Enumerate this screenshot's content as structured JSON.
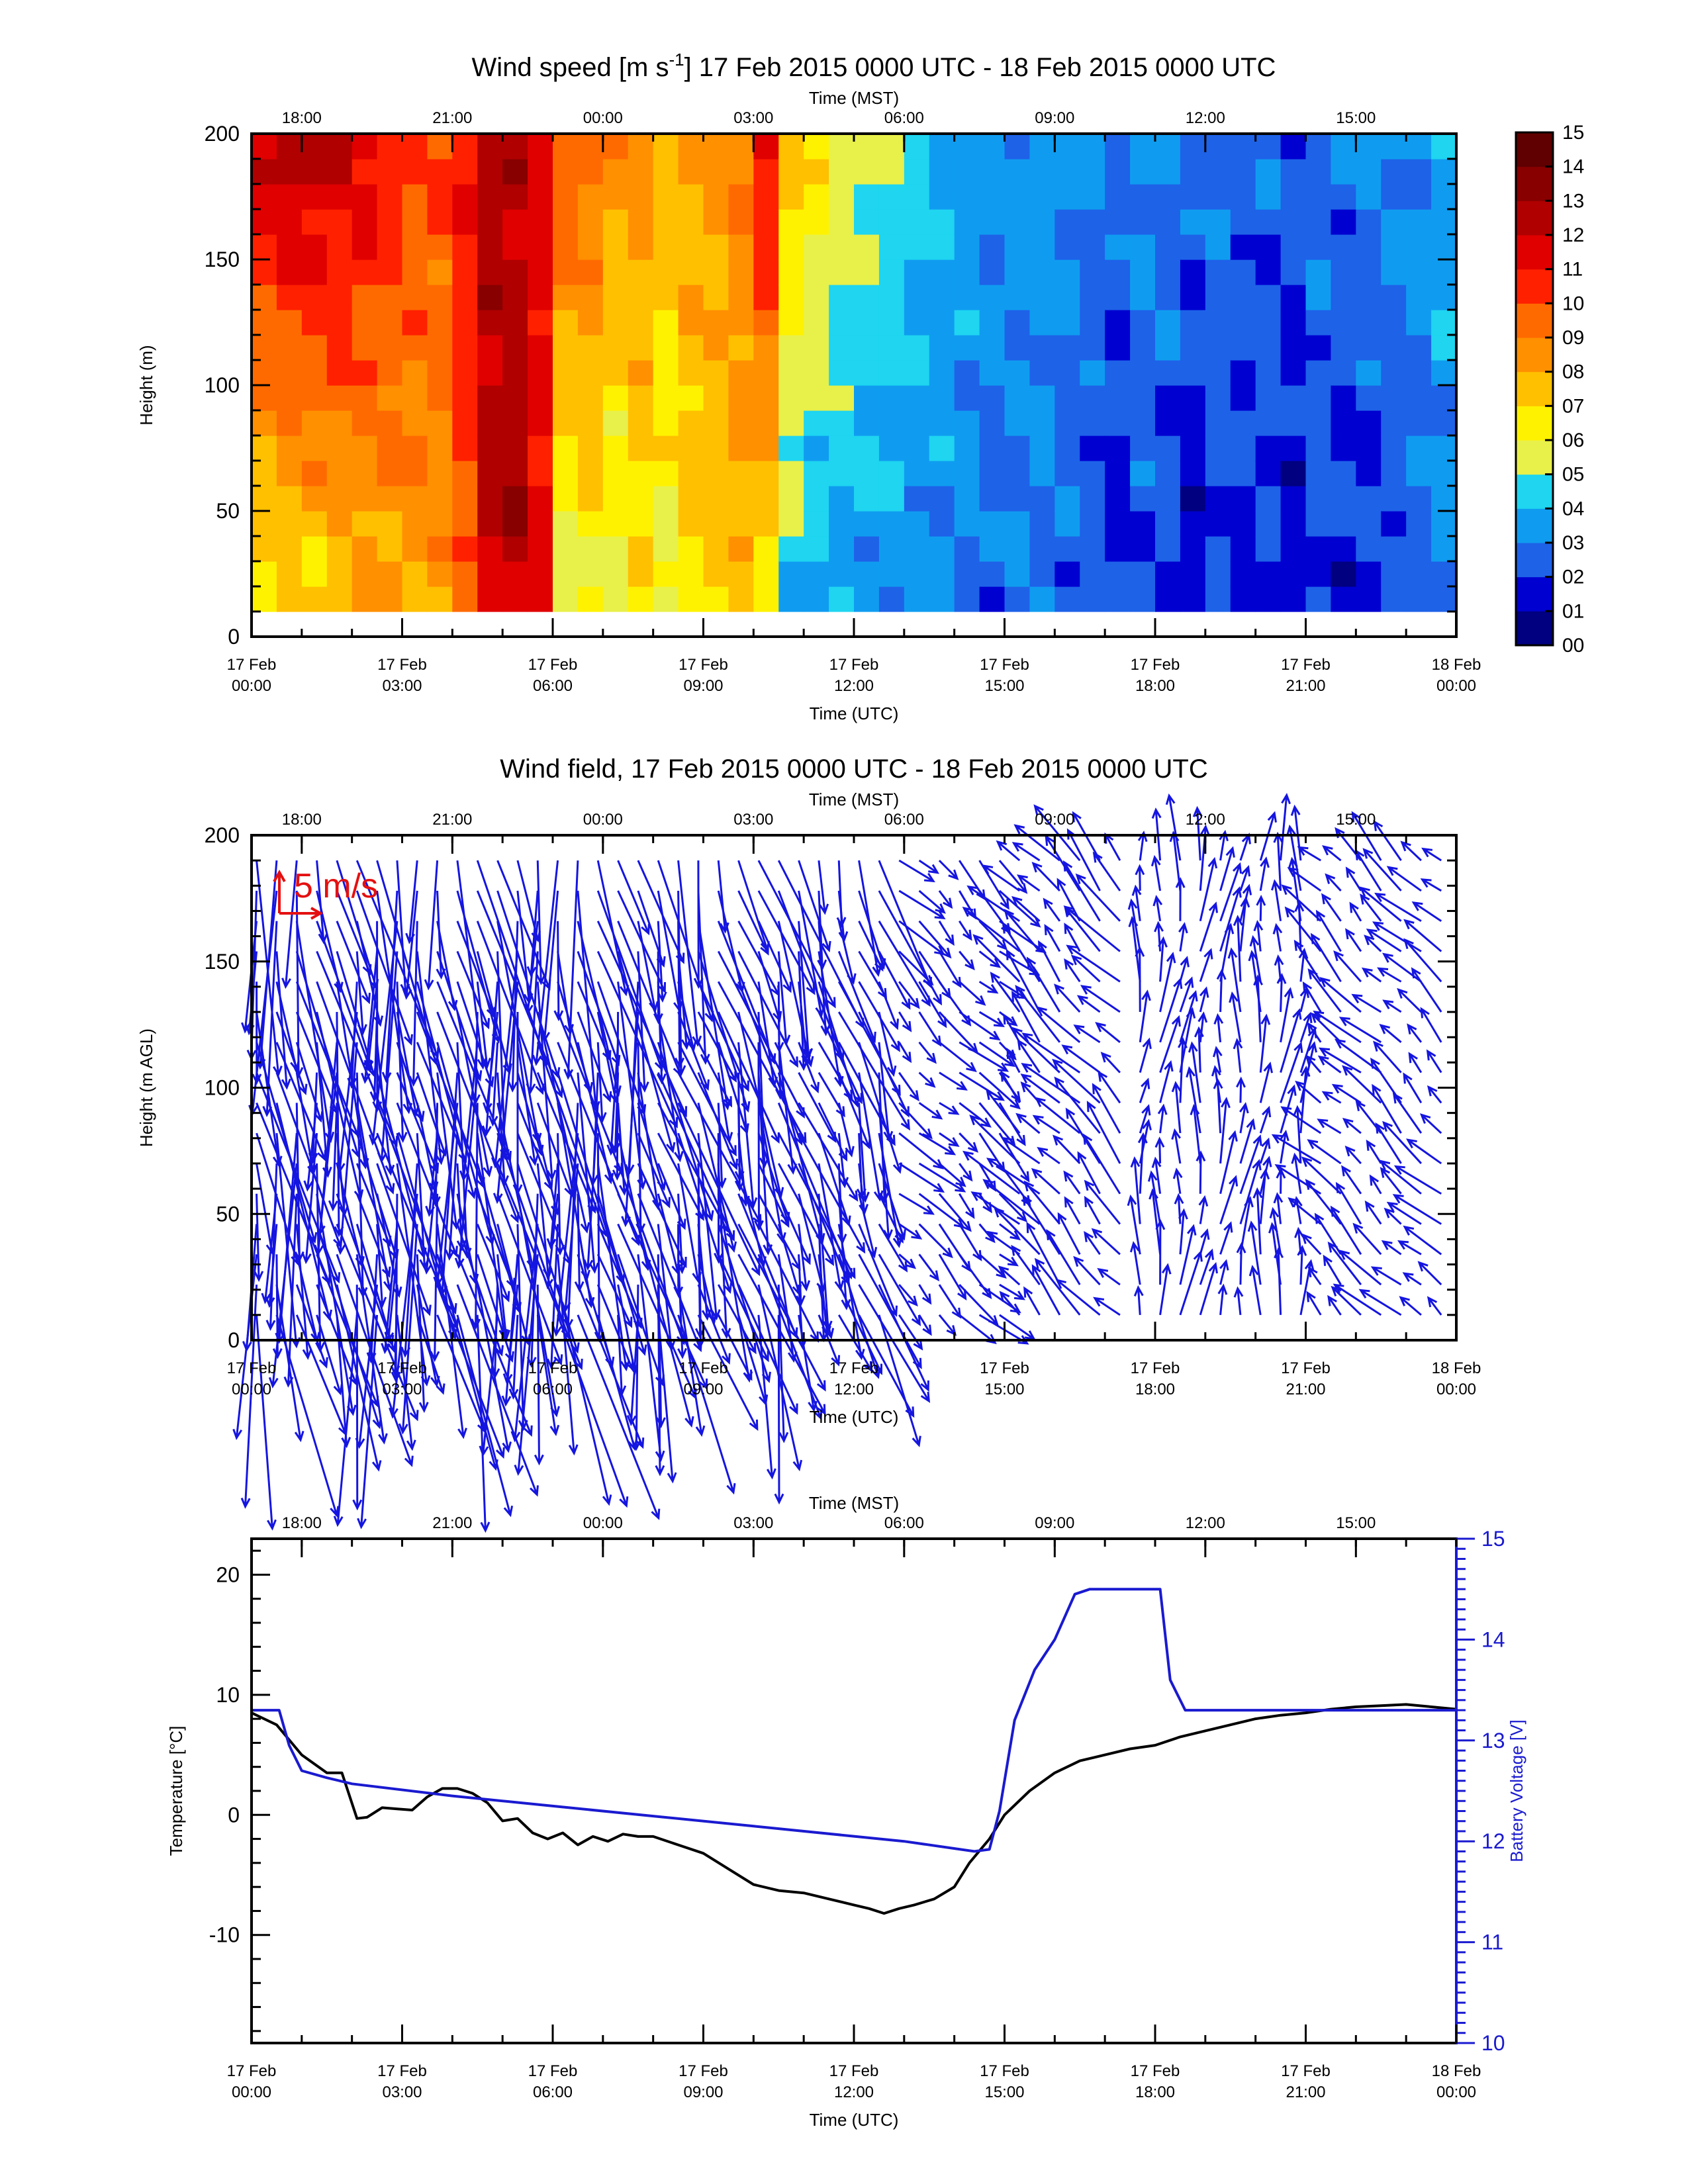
{
  "colors": {
    "wind_arrow": "#1515e0",
    "reference_arrow": "#e41010",
    "temperature_line": "#000000",
    "voltage_line": "#1a1ad0",
    "voltage_axis": "#1a1ad0"
  },
  "time_axis": {
    "utc_title": "Time (UTC)",
    "mst_title": "Time (MST)",
    "utc_ticks": [
      {
        "hour": 0,
        "day": "17 Feb",
        "time": "00:00"
      },
      {
        "hour": 3,
        "day": "17 Feb",
        "time": "03:00"
      },
      {
        "hour": 6,
        "day": "17 Feb",
        "time": "06:00"
      },
      {
        "hour": 9,
        "day": "17 Feb",
        "time": "09:00"
      },
      {
        "hour": 12,
        "day": "17 Feb",
        "time": "12:00"
      },
      {
        "hour": 15,
        "day": "17 Feb",
        "time": "15:00"
      },
      {
        "hour": 18,
        "day": "17 Feb",
        "time": "18:00"
      },
      {
        "hour": 21,
        "day": "17 Feb",
        "time": "21:00"
      },
      {
        "hour": 24,
        "day": "18 Feb",
        "time": "00:00"
      }
    ],
    "mst_ticks": [
      {
        "hour": 1,
        "label": "18:00"
      },
      {
        "hour": 4,
        "label": "21:00"
      },
      {
        "hour": 7,
        "label": "00:00"
      },
      {
        "hour": 10,
        "label": "03:00"
      },
      {
        "hour": 13,
        "label": "06:00"
      },
      {
        "hour": 16,
        "label": "09:00"
      },
      {
        "hour": 19,
        "label": "12:00"
      },
      {
        "hour": 22,
        "label": "15:00"
      }
    ]
  },
  "chart_data": [
    {
      "type": "heatmap",
      "title_main": "Wind speed [m s",
      "title_sup": "-1",
      "title_rest": "] 17 Feb 2015 0000 UTC - 18 Feb 2015 0000 UTC",
      "xlabel": "Time (UTC)",
      "x2label": "Time (MST)",
      "ylabel": "Height (m)",
      "xlim": [
        0,
        24
      ],
      "ylim": [
        0,
        200
      ],
      "yticks": [
        "0",
        "50",
        "100",
        "150",
        "200"
      ],
      "colorbar": {
        "levels": [
          "00",
          "01",
          "02",
          "03",
          "04",
          "05",
          "06",
          "07",
          "08",
          "09",
          "10",
          "11",
          "12",
          "13",
          "14",
          "15"
        ],
        "colors": [
          "#000080",
          "#0000d0",
          "#1e62e8",
          "#0f9cf0",
          "#1fd5f0",
          "#e8f04a",
          "#fff200",
          "#ffc000",
          "#ff9000",
          "#ff6a00",
          "#ff2000",
          "#e00000",
          "#b00000",
          "#880000",
          "#600000",
          "#380000"
        ]
      },
      "profiles": [
        {
          "hour_start": 0.0,
          "hour_end": 0.5,
          "speed_low": 6.3,
          "speed_high": 12.0
        },
        {
          "hour_start": 0.5,
          "hour_end": 1.0,
          "speed_low": 6.6,
          "speed_high": 12.8
        },
        {
          "hour_start": 1.0,
          "hour_end": 1.5,
          "speed_low": 6.8,
          "speed_high": 12.5
        },
        {
          "hour_start": 1.5,
          "hour_end": 2.0,
          "speed_low": 7.2,
          "speed_high": 12.0
        },
        {
          "hour_start": 2.0,
          "hour_end": 2.5,
          "speed_low": 7.5,
          "speed_high": 11.5
        },
        {
          "hour_start": 2.5,
          "hour_end": 3.0,
          "speed_low": 7.8,
          "speed_high": 11.0
        },
        {
          "hour_start": 3.0,
          "hour_end": 3.5,
          "speed_low": 7.9,
          "speed_high": 10.5
        },
        {
          "hour_start": 3.5,
          "hour_end": 4.0,
          "speed_low": 8.2,
          "speed_high": 10.2
        },
        {
          "hour_start": 4.0,
          "hour_end": 4.5,
          "speed_low": 9.5,
          "speed_high": 11.0
        },
        {
          "hour_start": 4.5,
          "hour_end": 5.0,
          "speed_low": 12.0,
          "speed_high": 12.8
        },
        {
          "hour_start": 5.0,
          "hour_end": 5.5,
          "speed_low": 12.5,
          "speed_high": 12.5
        },
        {
          "hour_start": 5.5,
          "hour_end": 6.0,
          "speed_low": 11.0,
          "speed_high": 11.5
        },
        {
          "hour_start": 6.0,
          "hour_end": 6.5,
          "speed_low": 5.0,
          "speed_high": 10.0
        },
        {
          "hour_start": 6.5,
          "hour_end": 7.0,
          "speed_low": 6.0,
          "speed_high": 9.5
        },
        {
          "hour_start": 7.0,
          "hour_end": 7.5,
          "speed_low": 5.5,
          "speed_high": 8.5
        },
        {
          "hour_start": 7.5,
          "hour_end": 8.0,
          "speed_low": 6.5,
          "speed_high": 8.5
        },
        {
          "hour_start": 8.0,
          "hour_end": 8.5,
          "speed_low": 5.5,
          "speed_high": 8.0
        },
        {
          "hour_start": 8.5,
          "hour_end": 9.0,
          "speed_low": 6.8,
          "speed_high": 8.3
        },
        {
          "hour_start": 9.0,
          "hour_end": 9.5,
          "speed_low": 7.0,
          "speed_high": 8.5
        },
        {
          "hour_start": 9.5,
          "hour_end": 10.0,
          "speed_low": 7.5,
          "speed_high": 9.0
        },
        {
          "hour_start": 10.0,
          "hour_end": 10.5,
          "speed_low": 6.5,
          "speed_high": 11.5
        },
        {
          "hour_start": 10.5,
          "hour_end": 11.0,
          "speed_low": 4.0,
          "speed_high": 7.5
        },
        {
          "hour_start": 11.0,
          "hour_end": 11.5,
          "speed_low": 3.5,
          "speed_high": 6.8
        },
        {
          "hour_start": 11.5,
          "hour_end": 12.0,
          "speed_low": 3.5,
          "speed_high": 6.0
        },
        {
          "hour_start": 12.0,
          "hour_end": 12.5,
          "speed_low": 3.3,
          "speed_high": 5.5
        },
        {
          "hour_start": 12.5,
          "hour_end": 13.0,
          "speed_low": 3.2,
          "speed_high": 5.0
        },
        {
          "hour_start": 13.0,
          "hour_end": 13.5,
          "speed_low": 3.0,
          "speed_high": 4.5
        },
        {
          "hour_start": 13.5,
          "hour_end": 14.0,
          "speed_low": 3.0,
          "speed_high": 4.0
        },
        {
          "hour_start": 14.0,
          "hour_end": 14.5,
          "speed_low": 2.8,
          "speed_high": 3.8
        },
        {
          "hour_start": 14.5,
          "hour_end": 15.0,
          "speed_low": 2.5,
          "speed_high": 3.5
        },
        {
          "hour_start": 15.0,
          "hour_end": 15.5,
          "speed_low": 2.8,
          "speed_high": 3.5
        },
        {
          "hour_start": 15.5,
          "hour_end": 16.0,
          "speed_low": 2.8,
          "speed_high": 3.5
        },
        {
          "hour_start": 16.0,
          "hour_end": 16.5,
          "speed_low": 2.5,
          "speed_high": 3.3
        },
        {
          "hour_start": 16.5,
          "hour_end": 17.0,
          "speed_low": 2.2,
          "speed_high": 3.0
        },
        {
          "hour_start": 17.0,
          "hour_end": 17.5,
          "speed_low": 1.5,
          "speed_high": 2.8
        },
        {
          "hour_start": 17.5,
          "hour_end": 18.0,
          "speed_low": 2.0,
          "speed_high": 3.5
        },
        {
          "hour_start": 18.0,
          "hour_end": 18.5,
          "speed_low": 1.8,
          "speed_high": 3.2
        },
        {
          "hour_start": 18.5,
          "hour_end": 19.0,
          "speed_low": 1.0,
          "speed_high": 2.8
        },
        {
          "hour_start": 19.0,
          "hour_end": 19.5,
          "speed_low": 2.0,
          "speed_high": 3.0
        },
        {
          "hour_start": 19.5,
          "hour_end": 20.0,
          "speed_low": 1.5,
          "speed_high": 2.5
        },
        {
          "hour_start": 20.0,
          "hour_end": 20.5,
          "speed_low": 1.8,
          "speed_high": 2.8
        },
        {
          "hour_start": 20.5,
          "hour_end": 21.0,
          "speed_low": 1.2,
          "speed_high": 2.5
        },
        {
          "hour_start": 21.0,
          "hour_end": 21.5,
          "speed_low": 2.0,
          "speed_high": 3.0
        },
        {
          "hour_start": 21.5,
          "hour_end": 22.0,
          "speed_low": 1.5,
          "speed_high": 2.8
        },
        {
          "hour_start": 22.0,
          "hour_end": 22.5,
          "speed_low": 1.8,
          "speed_high": 3.0
        },
        {
          "hour_start": 22.5,
          "hour_end": 23.0,
          "speed_low": 2.0,
          "speed_high": 3.2
        },
        {
          "hour_start": 23.0,
          "hour_end": 23.5,
          "speed_low": 2.5,
          "speed_high": 3.5
        },
        {
          "hour_start": 23.5,
          "hour_end": 24.0,
          "speed_low": 2.8,
          "speed_high": 4.0
        }
      ]
    },
    {
      "type": "vector",
      "title": "Wind field, 17 Feb 2015 0000 UTC - 18 Feb 2015 0000 UTC",
      "xlabel": "Time (UTC)",
      "x2label": "Time (MST)",
      "ylabel": "Height (m AGL)",
      "xlim": [
        0,
        24
      ],
      "ylim": [
        0,
        200
      ],
      "yticks": [
        "0",
        "50",
        "100",
        "150",
        "200"
      ],
      "reference_label": "5 m/s",
      "reference_speed": 5,
      "direction_segments": [
        {
          "hour_start": 0,
          "hour_end": 6.6,
          "u": 1.2,
          "v": -8.5
        },
        {
          "hour_start": 6.6,
          "hour_end": 8.0,
          "u": 1.5,
          "v": -8.0
        },
        {
          "hour_start": 8.0,
          "hour_end": 10.8,
          "u": 1.8,
          "v": -7.0
        },
        {
          "hour_start": 10.8,
          "hour_end": 12.8,
          "u": 1.5,
          "v": -5.0
        },
        {
          "hour_start": 12.8,
          "hour_end": 15.0,
          "u": 1.5,
          "v": -1.5
        },
        {
          "hour_start": 15.0,
          "hour_end": 17.5,
          "u": -1.8,
          "v": 2.0
        },
        {
          "hour_start": 17.5,
          "hour_end": 21.0,
          "u": 0.2,
          "v": 2.5
        },
        {
          "hour_start": 21.0,
          "hour_end": 24.0,
          "u": -1.5,
          "v": 1.5
        }
      ]
    },
    {
      "type": "line",
      "xlabel": "Time (UTC)",
      "x2label": "Time (MST)",
      "ylabel": "Temperature [°C]",
      "y2label": "Battery Voltage [V]",
      "xlim": [
        0,
        24
      ],
      "ylim": [
        -19,
        23
      ],
      "y2lim": [
        10,
        15
      ],
      "yticks": [
        "-10",
        "0",
        "10",
        "20"
      ],
      "y2ticks": [
        "10",
        "11",
        "12",
        "13",
        "14",
        "15"
      ],
      "series": [
        {
          "axis": "left",
          "x": [
            0,
            0.5,
            1.0,
            1.5,
            1.8,
            2.1,
            2.3,
            2.6,
            2.9,
            3.2,
            3.5,
            3.8,
            4.1,
            4.4,
            4.7,
            5.0,
            5.3,
            5.6,
            5.9,
            6.2,
            6.5,
            6.8,
            7.1,
            7.4,
            7.7,
            8.0,
            8.5,
            9.0,
            9.5,
            10.0,
            10.5,
            11.0,
            11.5,
            12.0,
            12.3,
            12.6,
            12.9,
            13.2,
            13.6,
            14.0,
            14.3,
            14.7,
            15.0,
            15.5,
            16.0,
            16.5,
            17.0,
            17.5,
            18.0,
            18.5,
            19.0,
            19.5,
            20.0,
            20.5,
            21.0,
            21.5,
            22.0,
            22.5,
            23.0,
            23.5,
            24.0
          ],
          "y": [
            8.5,
            7.5,
            5.0,
            3.5,
            3.5,
            -0.3,
            -0.2,
            0.6,
            0.5,
            0.4,
            1.5,
            2.2,
            2.2,
            1.8,
            1.0,
            -0.5,
            -0.3,
            -1.5,
            -2.0,
            -1.5,
            -2.5,
            -1.8,
            -2.2,
            -1.6,
            -1.8,
            -1.8,
            -2.5,
            -3.2,
            -4.5,
            -5.8,
            -6.3,
            -6.5,
            -7.0,
            -7.5,
            -7.8,
            -8.2,
            -7.8,
            -7.5,
            -7.0,
            -6.0,
            -4.0,
            -2.0,
            0.0,
            2.0,
            3.5,
            4.5,
            5.0,
            5.5,
            5.8,
            6.5,
            7.0,
            7.5,
            8.0,
            8.3,
            8.5,
            8.8,
            9.0,
            9.1,
            9.2,
            9.0,
            8.8
          ]
        },
        {
          "axis": "right",
          "x": [
            0,
            0.55,
            0.75,
            1.0,
            1.5,
            2.0,
            4.0,
            6.0,
            8.0,
            10.0,
            12.0,
            13.0,
            14.4,
            14.7,
            14.9,
            15.2,
            15.6,
            16.0,
            16.4,
            16.7,
            17.0,
            17.5,
            18.1,
            18.3,
            18.6,
            20.0,
            22.0,
            23.5,
            24.0
          ],
          "y": [
            13.3,
            13.3,
            12.95,
            12.7,
            12.63,
            12.57,
            12.45,
            12.35,
            12.25,
            12.15,
            12.05,
            12.0,
            11.9,
            11.92,
            12.3,
            13.2,
            13.7,
            14.0,
            14.45,
            14.5,
            14.5,
            14.5,
            14.5,
            13.6,
            13.3,
            13.3,
            13.3,
            13.3,
            13.3
          ]
        }
      ]
    }
  ]
}
